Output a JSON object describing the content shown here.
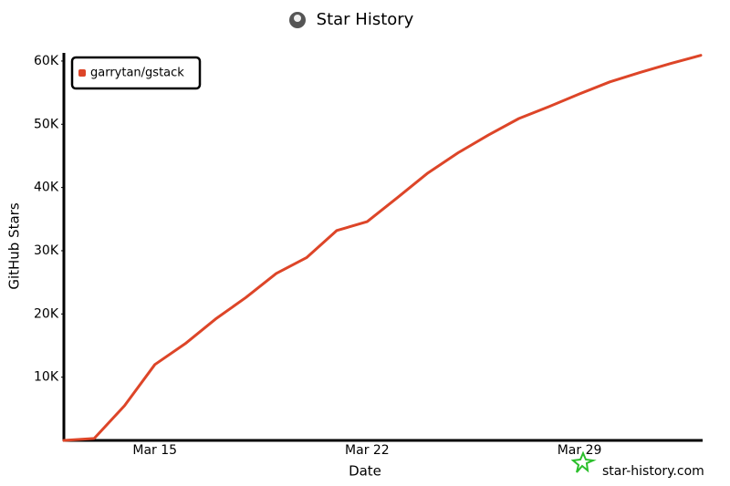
{
  "chart_data": {
    "type": "line",
    "title": "Star History",
    "x_label": "Date",
    "y_label": "GitHub Stars",
    "watermark": "star-history.com",
    "x": [
      "Mar 12",
      "Mar 13",
      "Mar 14",
      "Mar 15",
      "Mar 16",
      "Mar 17",
      "Mar 18",
      "Mar 19",
      "Mar 20",
      "Mar 21",
      "Mar 22",
      "Mar 23",
      "Mar 24",
      "Mar 25",
      "Mar 26",
      "Mar 27",
      "Mar 28",
      "Mar 29",
      "Mar 30",
      "Mar 31",
      "Apr 1",
      "Apr 2"
    ],
    "series": [
      {
        "name": "garrytan/gstack",
        "color": "#dd4528",
        "values": [
          0,
          300,
          5500,
          12000,
          15300,
          19200,
          22600,
          26400,
          28900,
          33200,
          34600,
          38400,
          42300,
          45500,
          48300,
          50900,
          52800,
          54800,
          56700,
          58200,
          59600,
          60900
        ]
      }
    ],
    "xticks": [
      "Mar 15",
      "Mar 22",
      "Mar 29"
    ],
    "ylim": [
      0,
      61000
    ],
    "yticks": [
      {
        "value": 10000,
        "label": "10K"
      },
      {
        "value": 20000,
        "label": "20K"
      },
      {
        "value": 30000,
        "label": "30K"
      },
      {
        "value": 40000,
        "label": "40K"
      },
      {
        "value": 50000,
        "label": "50K"
      },
      {
        "value": 60000,
        "label": "60K"
      }
    ],
    "grid": false,
    "legend": "top-left"
  }
}
